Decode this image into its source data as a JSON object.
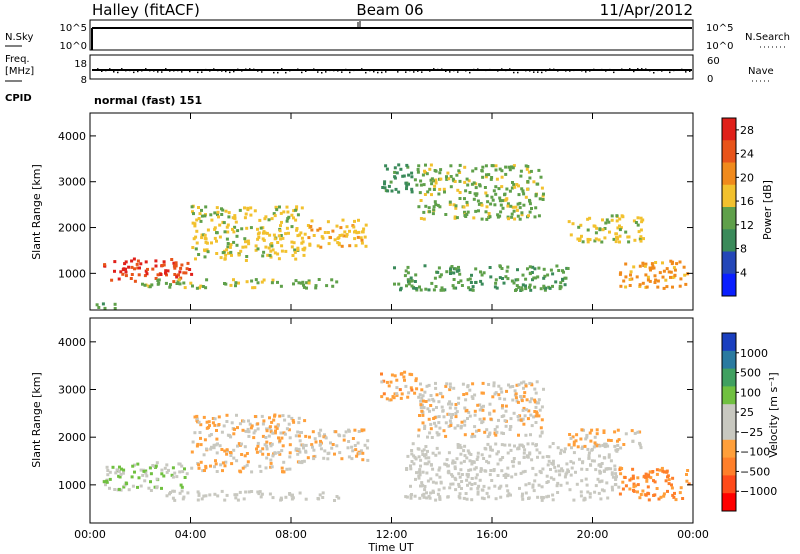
{
  "header": {
    "station": "Halley (fitACF)",
    "beam": "Beam 06",
    "date": "11/Apr/2012"
  },
  "status_panel": {
    "nsky_label": "N.Sky",
    "nsky_ticks": [
      "10^5",
      "10^0"
    ],
    "nsearch_label": "N.Search",
    "nsearch_ticks": [
      "10^5",
      "10^0"
    ],
    "freq_label_1": "Freq.",
    "freq_label_2": "[MHz]",
    "freq_ticks": [
      "18",
      "8"
    ],
    "nave_label": "Nave",
    "nave_ticks": [
      "60",
      "0"
    ],
    "cpid_label": "CPID",
    "cpid_text": "normal (fast) 151"
  },
  "colors": {
    "power_scale": [
      "#0a1fff",
      "#2447b8",
      "#3a8a5a",
      "#5fa04a",
      "#f2c12e",
      "#f08a1c",
      "#e8541a",
      "#e0201a"
    ],
    "velocity_scale": [
      "#ff0000",
      "#ff4a1a",
      "#ff7f2a",
      "#ff9f3a",
      "#c8c8c0",
      "#c8c8c0",
      "#70c040",
      "#40a060",
      "#2a7aa0",
      "#1a3fbf"
    ]
  },
  "chart_data": [
    {
      "type": "heatmap",
      "ylabel": "Slant Range [km]",
      "yticks": [
        "1000",
        "2000",
        "3000",
        "4000"
      ],
      "ylim": [
        200,
        4500
      ],
      "xticks": [
        "00:00",
        "04:00",
        "08:00",
        "12:00",
        "16:00",
        "20:00",
        "00:00"
      ],
      "colorbar": {
        "label": "Power [dB]",
        "ticks": [
          "4",
          "8",
          "12",
          "16",
          "20",
          "24",
          "28"
        ],
        "range": [
          0,
          30
        ]
      },
      "echo_regions": [
        {
          "t": [
            0.5,
            4.0
          ],
          "r": [
            850,
            1350
          ],
          "value": 26
        },
        {
          "t": [
            4.0,
            8.5
          ],
          "r": [
            1300,
            2500
          ],
          "value": 16
        },
        {
          "t": [
            8.5,
            11.0
          ],
          "r": [
            1600,
            2200
          ],
          "value": 18
        },
        {
          "t": [
            0.0,
            1.0
          ],
          "r": [
            250,
            400
          ],
          "value": 12
        },
        {
          "t": [
            2.0,
            10.0
          ],
          "r": [
            700,
            900
          ],
          "value": 14
        },
        {
          "t": [
            11.5,
            13.0
          ],
          "r": [
            2800,
            3400
          ],
          "value": 10
        },
        {
          "t": [
            13.0,
            18.0
          ],
          "r": [
            2200,
            3400
          ],
          "value": 14
        },
        {
          "t": [
            12.0,
            19.0
          ],
          "r": [
            650,
            1200
          ],
          "value": 12
        },
        {
          "t": [
            19.0,
            22.0
          ],
          "r": [
            1700,
            2300
          ],
          "value": 16
        },
        {
          "t": [
            21.0,
            23.8
          ],
          "r": [
            700,
            1300
          ],
          "value": 20
        }
      ]
    },
    {
      "type": "heatmap",
      "ylabel": "Slant Range [km]",
      "yticks": [
        "1000",
        "2000",
        "3000",
        "4000"
      ],
      "ylim": [
        200,
        4500
      ],
      "xticks": [
        "00:00",
        "04:00",
        "08:00",
        "12:00",
        "16:00",
        "20:00",
        "00:00"
      ],
      "xlabel": "Time UT",
      "colorbar": {
        "label": "Velocity [m s⁻¹]",
        "ticks": [
          "1000",
          "500",
          "100",
          "25",
          "−25",
          "−100",
          "−500",
          "−1000"
        ],
        "range": [
          -1000,
          1000
        ]
      },
      "echo_regions": [
        {
          "t": [
            0.5,
            4.0
          ],
          "r": [
            900,
            1500
          ],
          "value": 150
        },
        {
          "t": [
            4.0,
            8.5
          ],
          "r": [
            1300,
            2500
          ],
          "value": -200
        },
        {
          "t": [
            8.5,
            11.0
          ],
          "r": [
            1500,
            2200
          ],
          "value": -150
        },
        {
          "t": [
            3.0,
            10.0
          ],
          "r": [
            700,
            900
          ],
          "value": 0
        },
        {
          "t": [
            11.5,
            13.0
          ],
          "r": [
            2800,
            3400
          ],
          "value": -300
        },
        {
          "t": [
            13.0,
            18.0
          ],
          "r": [
            2000,
            3200
          ],
          "value": -150
        },
        {
          "t": [
            12.5,
            21.0
          ],
          "r": [
            700,
            1900
          ],
          "value": 0
        },
        {
          "t": [
            19.0,
            22.0
          ],
          "r": [
            1800,
            2200
          ],
          "value": -250
        },
        {
          "t": [
            21.0,
            23.8
          ],
          "r": [
            700,
            1400
          ],
          "value": -400
        }
      ]
    }
  ]
}
